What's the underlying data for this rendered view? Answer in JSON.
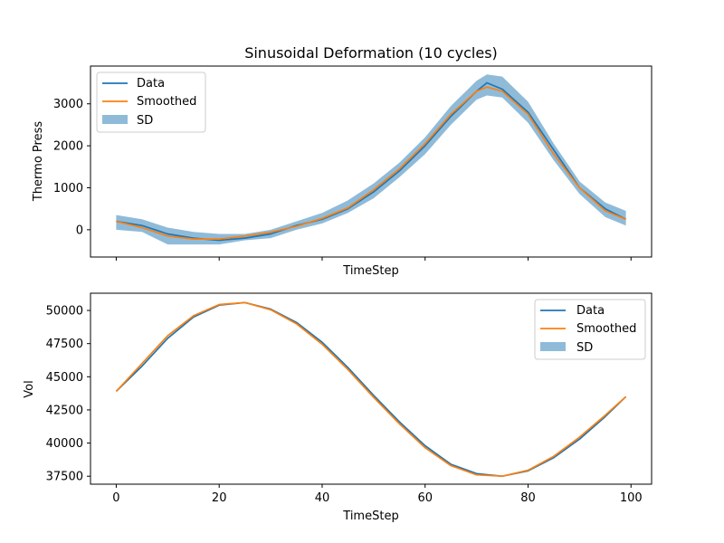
{
  "title": "Sinusoidal Deformation (10 cycles)",
  "colors": {
    "data": "#1f77b4",
    "smoothed": "#ff7f0e",
    "sd_fill": "#1f77b4",
    "sd_alpha": 0.5,
    "axes": "#000000",
    "background": "#ffffff"
  },
  "chart_data": [
    {
      "type": "line",
      "title": "Sinusoidal Deformation (10 cycles)",
      "xlabel": "TimeStep",
      "ylabel": "Thermo Press",
      "xlim": [
        -5,
        104
      ],
      "ylim": [
        -650,
        3900
      ],
      "xticks": [
        0,
        20,
        40,
        60,
        80,
        100
      ],
      "xtick_labels": [
        "",
        "",
        "",
        "",
        "",
        ""
      ],
      "yticks": [
        0,
        1000,
        2000,
        3000
      ],
      "ytick_labels": [
        "0",
        "1000",
        "2000",
        "3000"
      ],
      "grid": false,
      "legend_position": "upper-left",
      "legend": [
        "Data",
        "Smoothed",
        "SD"
      ],
      "x": [
        0,
        5,
        10,
        15,
        20,
        25,
        30,
        35,
        40,
        45,
        50,
        55,
        60,
        65,
        70,
        72,
        75,
        80,
        85,
        90,
        95,
        99
      ],
      "series": [
        {
          "name": "Data",
          "values": [
            200,
            100,
            -100,
            -200,
            -250,
            -200,
            -100,
            100,
            250,
            500,
            900,
            1400,
            2000,
            2700,
            3300,
            3500,
            3350,
            2800,
            1900,
            1000,
            500,
            250
          ]
        },
        {
          "name": "Smoothed",
          "values": [
            200,
            50,
            -150,
            -220,
            -220,
            -150,
            -60,
            80,
            270,
            520,
            950,
            1450,
            2050,
            2750,
            3300,
            3400,
            3300,
            2750,
            1800,
            1000,
            450,
            250
          ]
        }
      ],
      "sd_band": {
        "name": "SD",
        "lower": [
          0,
          -50,
          -350,
          -350,
          -350,
          -250,
          -200,
          0,
          150,
          400,
          750,
          1250,
          1800,
          2500,
          3100,
          3200,
          3150,
          2550,
          1650,
          850,
          300,
          100
        ],
        "upper": [
          350,
          250,
          50,
          -50,
          -100,
          -100,
          0,
          200,
          400,
          700,
          1100,
          1600,
          2200,
          2950,
          3550,
          3700,
          3650,
          3050,
          2050,
          1150,
          650,
          450
        ]
      }
    },
    {
      "type": "line",
      "title": "",
      "xlabel": "TimeStep",
      "ylabel": "Vol",
      "xlim": [
        -5,
        104
      ],
      "ylim": [
        36900,
        51300
      ],
      "xticks": [
        0,
        20,
        40,
        60,
        80,
        100
      ],
      "xtick_labels": [
        "0",
        "20",
        "40",
        "60",
        "80",
        "100"
      ],
      "yticks": [
        37500,
        40000,
        42500,
        45000,
        47500,
        50000
      ],
      "ytick_labels": [
        "37500",
        "40000",
        "42500",
        "45000",
        "47500",
        "50000"
      ],
      "grid": false,
      "legend_position": "upper-right",
      "legend": [
        "Data",
        "Smoothed",
        "SD"
      ],
      "x": [
        0,
        5,
        10,
        15,
        20,
        25,
        30,
        35,
        40,
        45,
        50,
        55,
        60,
        65,
        70,
        75,
        80,
        85,
        90,
        95,
        99
      ],
      "series": [
        {
          "name": "Data",
          "values": [
            43900,
            45800,
            47900,
            49500,
            50400,
            50600,
            50100,
            49100,
            47600,
            45700,
            43600,
            41600,
            39800,
            38400,
            37700,
            37500,
            37900,
            38900,
            40300,
            42000,
            43500
          ]
        },
        {
          "name": "Smoothed",
          "values": [
            43900,
            46000,
            48100,
            49600,
            50450,
            50600,
            50050,
            49000,
            47450,
            45550,
            43450,
            41450,
            39650,
            38300,
            37600,
            37500,
            37950,
            39000,
            40450,
            42100,
            43500
          ]
        }
      ]
    }
  ]
}
